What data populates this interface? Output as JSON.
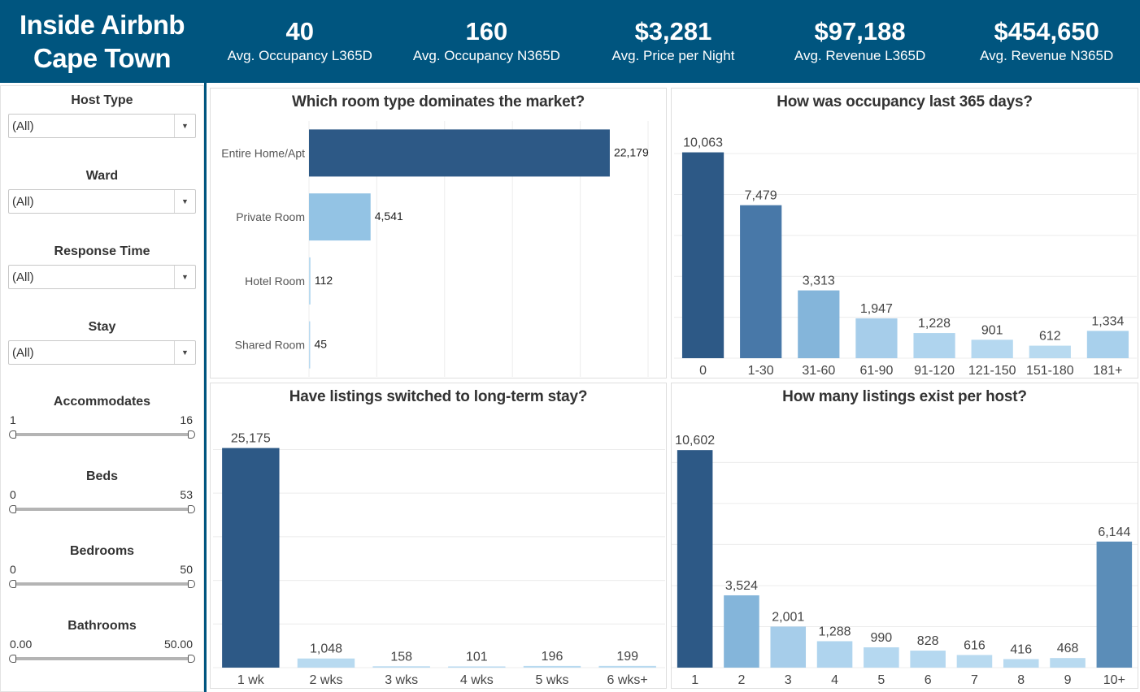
{
  "header": {
    "title_line1": "Inside Airbnb",
    "title_line2": "Cape Town",
    "kpis": [
      {
        "value": "40",
        "label": "Avg. Occupancy L365D"
      },
      {
        "value": "160",
        "label": "Avg. Occupancy N365D"
      },
      {
        "value": "$3,281",
        "label": "Avg. Price per Night"
      },
      {
        "value": "$97,188",
        "label": "Avg. Revenue L365D"
      },
      {
        "value": "$454,650",
        "label": "Avg. Revenue N365D"
      }
    ]
  },
  "filters": {
    "host_type": {
      "label": "Host Type",
      "value": "(All)"
    },
    "ward": {
      "label": "Ward",
      "value": "(All)"
    },
    "response_time": {
      "label": "Response Time",
      "value": "(All)"
    },
    "stay": {
      "label": "Stay",
      "value": "(All)"
    },
    "accommodates": {
      "label": "Accommodates",
      "min": "1",
      "max": "16"
    },
    "beds": {
      "label": "Beds",
      "min": "0",
      "max": "53"
    },
    "bedrooms": {
      "label": "Bedrooms",
      "min": "0",
      "max": "50"
    },
    "bathrooms": {
      "label": "Bathrooms",
      "min": "0.00",
      "max": "50.00"
    }
  },
  "icons": {
    "dropdown": "chevron-down-icon",
    "slider_handle": "slider-handle-icon"
  },
  "colors": {
    "header_bg": "#00557f",
    "dark_bar": "#2d5986",
    "mid_bar": "#5b8db8",
    "light_bar": "#a8cfe8"
  },
  "chart_data": [
    {
      "id": "room_type",
      "type": "bar",
      "orientation": "horizontal",
      "title": "Which room type dominates the market?",
      "categories": [
        "Entire Home/Apt",
        "Private Room",
        "Hotel Room",
        "Shared Room"
      ],
      "values": [
        22179,
        4541,
        112,
        45
      ],
      "labels": [
        "22,179",
        "4,541",
        "112",
        "45"
      ],
      "colors": [
        "#2d5986",
        "#93c3e4",
        "#b8daf0",
        "#b8daf0"
      ],
      "xlim": [
        0,
        25000
      ],
      "grid": true
    },
    {
      "id": "occupancy",
      "type": "bar",
      "title": "How was occupancy last 365 days?",
      "categories": [
        "0",
        "1-30",
        "31-60",
        "61-90",
        "91-120",
        "121-150",
        "151-180",
        "181+"
      ],
      "values": [
        10063,
        7479,
        3313,
        1947,
        1228,
        901,
        612,
        1334
      ],
      "labels": [
        "10,063",
        "7,479",
        "3,313",
        "1,947",
        "1,228",
        "901",
        "612",
        "1,334"
      ],
      "colors": [
        "#2d5986",
        "#4878a8",
        "#84b5da",
        "#a6cdea",
        "#afd4ee",
        "#b5d8f0",
        "#b8daf0",
        "#a8d0ec"
      ],
      "ylim": [
        0,
        10800
      ],
      "grid": true
    },
    {
      "id": "long_term",
      "type": "bar",
      "title": "Have listings switched to long-term stay?",
      "categories": [
        "1 wk",
        "2 wks",
        "3 wks",
        "4 wks",
        "5 wks",
        "6 wks+"
      ],
      "values": [
        25175,
        1048,
        158,
        101,
        196,
        199
      ],
      "labels": [
        "25,175",
        "1,048",
        "158",
        "101",
        "196",
        "199"
      ],
      "colors": [
        "#2d5986",
        "#b8daf0",
        "#b8daf0",
        "#b8daf0",
        "#b8daf0",
        "#b8daf0"
      ],
      "ylim": [
        0,
        27000
      ],
      "grid": true
    },
    {
      "id": "listings_per_host",
      "type": "bar",
      "title": "How many listings exist per host?",
      "categories": [
        "1",
        "2",
        "3",
        "4",
        "5",
        "6",
        "7",
        "8",
        "9",
        "10+"
      ],
      "values": [
        10602,
        3524,
        2001,
        1288,
        990,
        828,
        616,
        416,
        468,
        6144
      ],
      "labels": [
        "10,602",
        "3,524",
        "2,001",
        "1,288",
        "990",
        "828",
        "616",
        "416",
        "468",
        "6,144"
      ],
      "colors": [
        "#2d5986",
        "#84b5da",
        "#a6cdea",
        "#afd4ee",
        "#b5d8f0",
        "#b5d8f0",
        "#b8daf0",
        "#b8daf0",
        "#b8daf0",
        "#5b8db8"
      ],
      "ylim": [
        0,
        11400
      ],
      "grid": true
    }
  ]
}
